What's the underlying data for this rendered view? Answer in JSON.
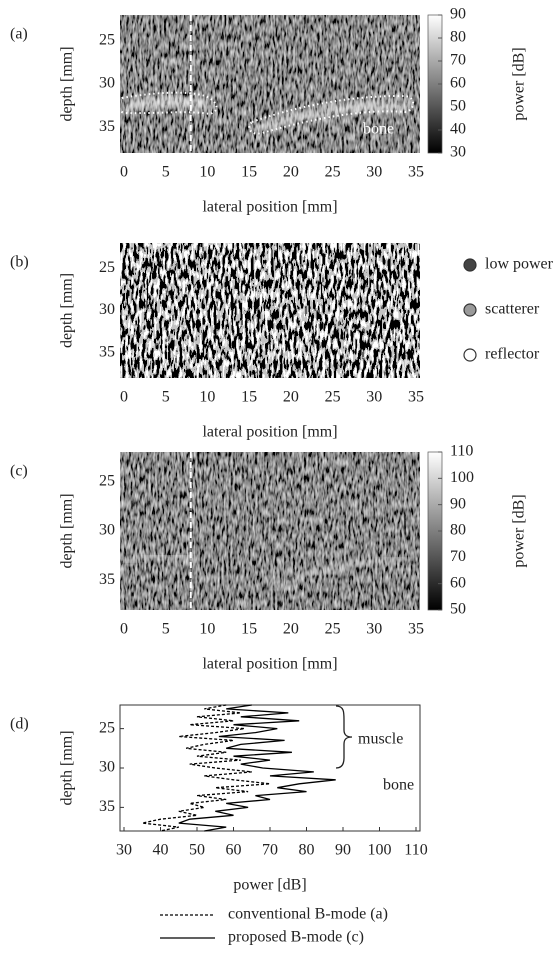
{
  "chart_data": [
    {
      "type": "heatmap",
      "panel": "(a)",
      "xlabel": "lateral position [mm]",
      "ylabel": "depth [mm]",
      "xlim": [
        0,
        35
      ],
      "xticks": [
        0,
        5,
        10,
        15,
        20,
        25,
        30,
        35
      ],
      "ylim": [
        22,
        38
      ],
      "yticks": [
        25,
        30,
        35
      ],
      "yreverse": true,
      "marker_x": 8,
      "annotations": [
        "bone"
      ],
      "colorbar": {
        "label": "power [dB]",
        "lim": [
          30,
          90
        ],
        "ticks": [
          30,
          40,
          50,
          60,
          70,
          80,
          90
        ]
      }
    },
    {
      "type": "heatmap",
      "panel": "(b)",
      "xlabel": "lateral position [mm]",
      "ylabel": "depth [mm]",
      "xlim": [
        0,
        35
      ],
      "xticks": [
        0,
        5,
        10,
        15,
        20,
        25,
        30,
        35
      ],
      "ylim": [
        22,
        38
      ],
      "yticks": [
        25,
        30,
        35
      ],
      "yreverse": true,
      "legend": [
        {
          "name": "low power",
          "color": "#444444"
        },
        {
          "name": "scatterer",
          "color": "#9a9a9a"
        },
        {
          "name": "reflector",
          "color": "#ffffff"
        }
      ]
    },
    {
      "type": "heatmap",
      "panel": "(c)",
      "xlabel": "lateral position [mm]",
      "ylabel": "depth [mm]",
      "xlim": [
        0,
        35
      ],
      "xticks": [
        0,
        5,
        10,
        15,
        20,
        25,
        30,
        35
      ],
      "ylim": [
        22,
        38
      ],
      "yticks": [
        25,
        30,
        35
      ],
      "yreverse": true,
      "marker_x": 8,
      "colorbar": {
        "label": "power [dB]",
        "lim": [
          50,
          110
        ],
        "ticks": [
          50,
          60,
          70,
          80,
          90,
          100,
          110
        ]
      }
    },
    {
      "type": "line",
      "panel": "(d)",
      "xlabel": "power [dB]",
      "ylabel": "depth [mm]",
      "xlim": [
        30,
        110
      ],
      "xticks": [
        30,
        40,
        50,
        60,
        70,
        80,
        90,
        100,
        110
      ],
      "ylim": [
        22,
        38
      ],
      "yticks": [
        25,
        30,
        35
      ],
      "yreverse": true,
      "annotations": [
        "muscle",
        "bone"
      ],
      "depth": [
        22,
        22.5,
        23,
        23.5,
        24,
        24.5,
        25,
        25.5,
        26,
        26.5,
        27,
        27.5,
        28,
        28.5,
        29,
        29.5,
        30,
        30.5,
        31,
        31.5,
        32,
        32.5,
        33,
        33.5,
        34,
        34.5,
        35,
        35.5,
        36,
        36.5,
        37,
        37.5,
        38
      ],
      "series": [
        {
          "name": "conventional B-mode (a)",
          "style": "dashed",
          "color": "#000000",
          "values": [
            58,
            52,
            62,
            50,
            60,
            48,
            63,
            55,
            45,
            60,
            52,
            47,
            58,
            50,
            62,
            48,
            55,
            65,
            52,
            60,
            70,
            55,
            64,
            50,
            58,
            48,
            52,
            45,
            50,
            40,
            35,
            45,
            40
          ]
        },
        {
          "name": "proposed B-mode (c)",
          "style": "solid",
          "color": "#000000",
          "values": [
            65,
            58,
            75,
            62,
            78,
            60,
            72,
            66,
            56,
            74,
            62,
            58,
            76,
            60,
            70,
            62,
            68,
            82,
            70,
            88,
            78,
            72,
            80,
            66,
            70,
            58,
            64,
            55,
            60,
            48,
            45,
            58,
            52
          ]
        }
      ]
    }
  ]
}
